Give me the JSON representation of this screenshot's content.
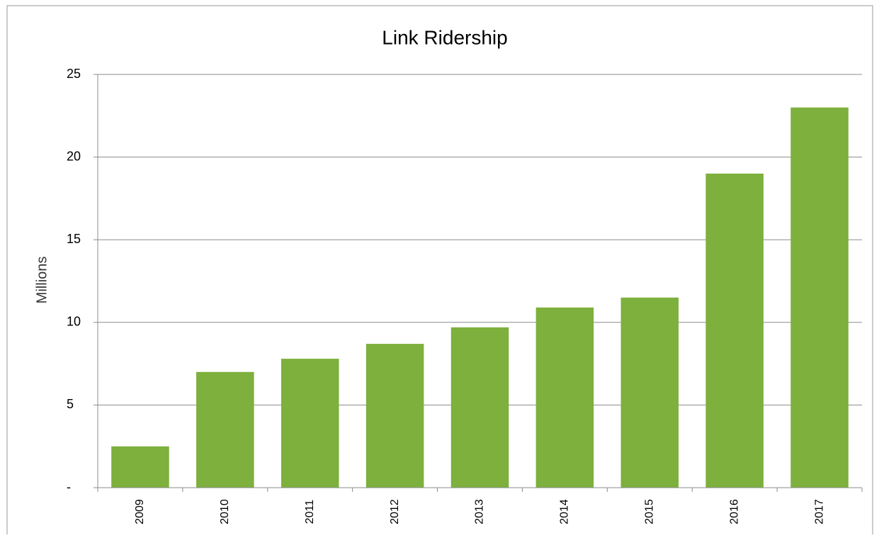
{
  "chart_data": {
    "type": "bar",
    "title": "Link Ridership",
    "y_label": "Millions",
    "categories": [
      "2009",
      "2010",
      "2011",
      "2012",
      "2013",
      "2014",
      "2015",
      "2016",
      "2017"
    ],
    "values": [
      2.5,
      7.0,
      7.8,
      8.7,
      9.7,
      10.9,
      11.5,
      19.0,
      23.0
    ],
    "color": "#7db03c",
    "ylim": [
      0,
      25
    ],
    "yticks": [
      {
        "value": 0,
        "label": "-"
      },
      5,
      10,
      15,
      20,
      25
    ],
    "grid": true
  }
}
